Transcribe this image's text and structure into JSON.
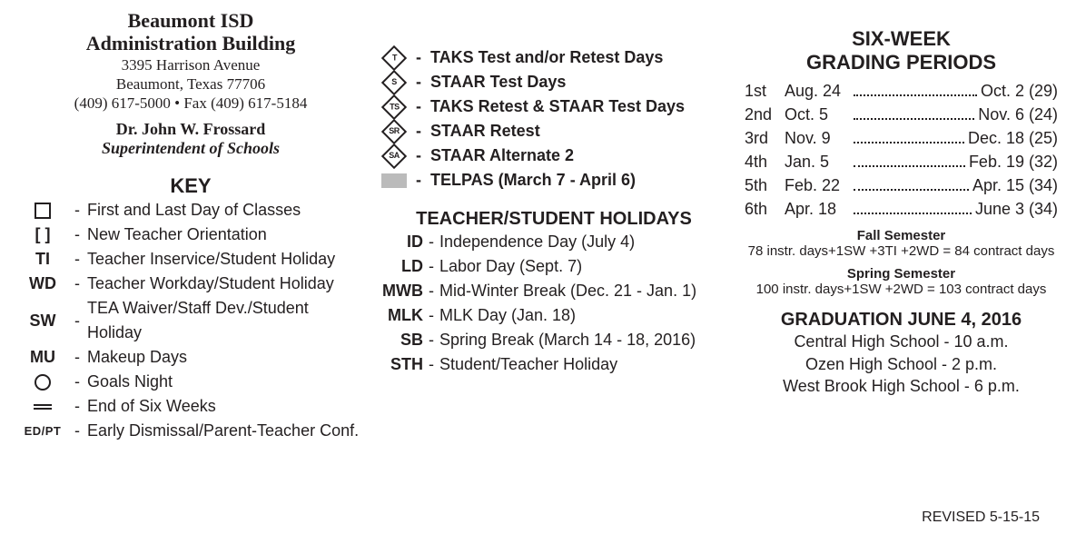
{
  "header": {
    "org": "Beaumont ISD",
    "building": "Administration Building",
    "street": "3395 Harrison Avenue",
    "city": "Beaumont, Texas 77706",
    "phone_fax": "(409) 617-5000 • Fax (409) 617-5184",
    "super_name": "Dr. John W. Frossard",
    "super_title": "Superintendent of Schools"
  },
  "key": {
    "heading": "KEY",
    "items": [
      {
        "sym_kind": "square",
        "sym": "",
        "desc": "First  and Last Day of Classes"
      },
      {
        "sym_kind": "text",
        "sym": "[ ]",
        "desc": "New Teacher Orientation"
      },
      {
        "sym_kind": "text",
        "sym": "TI",
        "desc": "Teacher Inservice/Student Holiday"
      },
      {
        "sym_kind": "text",
        "sym": "WD",
        "desc": "Teacher Workday/Student Holiday"
      },
      {
        "sym_kind": "text",
        "sym": "SW",
        "desc": "TEA Waiver/Staff Dev./Student Holiday"
      },
      {
        "sym_kind": "text",
        "sym": "MU",
        "desc": "Makeup Days"
      },
      {
        "sym_kind": "circle",
        "sym": "",
        "desc": "Goals Night"
      },
      {
        "sym_kind": "equals",
        "sym": "",
        "desc": "End of Six Weeks"
      },
      {
        "sym_kind": "small",
        "sym": "ED/PT",
        "desc": "Early Dismissal/Parent-Teacher Conf."
      }
    ]
  },
  "legend": {
    "items": [
      {
        "diamond": "T",
        "label": "TAKS Test and/or Retest Days"
      },
      {
        "diamond": "S",
        "label": "STAAR Test Days"
      },
      {
        "diamond": "TS",
        "label": "TAKS Retest & STAAR Test Days"
      },
      {
        "diamond": "SR",
        "label": "STAAR Retest"
      },
      {
        "diamond": "SA",
        "label": "STAAR Alternate 2"
      }
    ],
    "telpas": "TELPAS (March 7 - April 6)"
  },
  "holidays": {
    "heading": "TEACHER/STUDENT HOLIDAYS",
    "items": [
      {
        "abbr": "ID",
        "desc": "Independence Day (July 4)"
      },
      {
        "abbr": "LD",
        "desc": "Labor Day (Sept. 7)"
      },
      {
        "abbr": "MWB",
        "desc": "Mid-Winter Break (Dec. 21 - Jan. 1)"
      },
      {
        "abbr": "MLK",
        "desc": "MLK Day (Jan. 18)"
      },
      {
        "abbr": "SB",
        "desc": "Spring Break (March 14 - 18, 2016)"
      },
      {
        "abbr": "STH",
        "desc": "Student/Teacher Holiday"
      }
    ]
  },
  "periods": {
    "title1": "SIX-WEEK",
    "title2": "GRADING PERIODS",
    "rows": [
      {
        "ord": "1st",
        "start": "Aug. 24",
        "end": "Oct. 2 (29)"
      },
      {
        "ord": "2nd",
        "start": "Oct. 5",
        "end": "Nov. 6 (24)"
      },
      {
        "ord": "3rd",
        "start": "Nov. 9",
        "end": "Dec. 18 (25)"
      },
      {
        "ord": "4th",
        "start": "Jan. 5",
        "end": "Feb. 19 (32)"
      },
      {
        "ord": "5th",
        "start": "Feb. 22",
        "end": "Apr. 15 (34)"
      },
      {
        "ord": "6th",
        "start": "Apr. 18",
        "end": "June 3 (34)"
      }
    ],
    "fall_label": "Fall Semester",
    "fall_text": "78 instr. days+1SW +3TI +2WD = 84 contract days",
    "spring_label": "Spring Semester",
    "spring_text": "100 instr. days+1SW +2WD = 103 contract days"
  },
  "graduation": {
    "title": "GRADUATION  JUNE 4, 2016",
    "lines": [
      "Central High School - 10 a.m.",
      "Ozen High School - 2 p.m.",
      "West Brook High School - 6 p.m."
    ]
  },
  "revised": "REVISED 5-15-15",
  "colors": {
    "text": "#231f20",
    "telpas_gray": "#bbbbbb",
    "background": "#ffffff"
  }
}
